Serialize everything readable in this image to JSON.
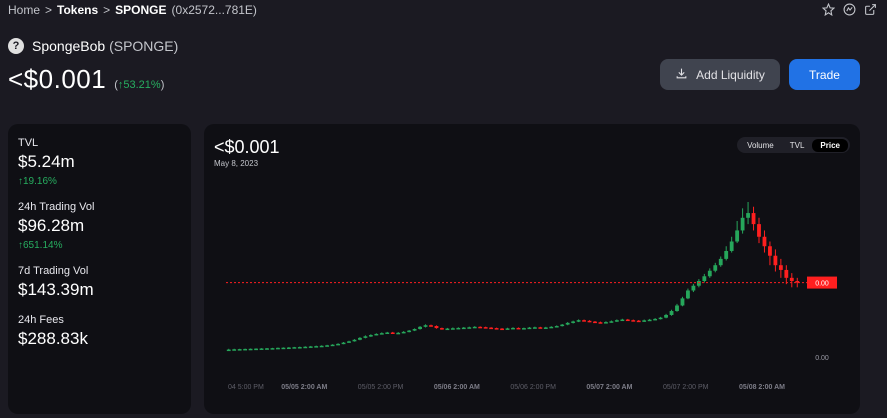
{
  "breadcrumb": {
    "home": "Home",
    "sep1": ">",
    "tokens": "Tokens",
    "sep2": ">",
    "current": "SPONGE",
    "address": "(0x2572...781E)"
  },
  "icons": {
    "star": "star-icon",
    "explorer": "explorer-icon",
    "external": "external-link-icon"
  },
  "token": {
    "name": "SpongeBob",
    "symbol": "(SPONGE)",
    "logo_glyph": "?",
    "price": "<$0.001",
    "change_open": "(",
    "change_arrow": "↑",
    "change": "53.21%",
    "change_close": ")"
  },
  "actions": {
    "add_liquidity": "Add Liquidity",
    "trade": "Trade"
  },
  "stats": [
    {
      "label": "TVL",
      "value": "$5.24m",
      "change": "↑19.16%"
    },
    {
      "label": "24h Trading Vol",
      "value": "$96.28m",
      "change": "↑651.14%"
    },
    {
      "label": "7d Trading Vol",
      "value": "$143.39m",
      "change": ""
    },
    {
      "label": "24h Fees",
      "value": "$288.83k",
      "change": ""
    }
  ],
  "chart_header": {
    "price": "<$0.001",
    "date": "May 8, 2023"
  },
  "chart_tabs": [
    {
      "label": "Volume",
      "active": false
    },
    {
      "label": "TVL",
      "active": false
    },
    {
      "label": "Price",
      "active": true
    }
  ],
  "colors": {
    "up": "#26a65b",
    "down": "#ff1f1f",
    "accent": "#2172e5",
    "positive": "#27ae60"
  },
  "chart_data": {
    "type": "candlestick",
    "price_line_label": "0.00",
    "y_tick_labels": [
      "0.00"
    ],
    "x_tick_labels": [
      {
        "text": "04 5:00 PM",
        "bold": false
      },
      {
        "text": "05/05 2:00 AM",
        "bold": true
      },
      {
        "text": "05/05 2:00 PM",
        "bold": false
      },
      {
        "text": "05/06 2:00 AM",
        "bold": true
      },
      {
        "text": "05/06 2:00 PM",
        "bold": false
      },
      {
        "text": "05/07 2:00 AM",
        "bold": true
      },
      {
        "text": "05/07 2:00 PM",
        "bold": false
      },
      {
        "text": "05/08 2:00 AM",
        "bold": true
      }
    ],
    "ylim": [
      0,
      1
    ],
    "candles": [
      [
        0.063,
        0.066,
        0.071,
        0.061
      ],
      [
        0.066,
        0.068,
        0.071,
        0.064
      ],
      [
        0.068,
        0.069,
        0.071,
        0.066
      ],
      [
        0.069,
        0.07,
        0.072,
        0.067
      ],
      [
        0.07,
        0.071,
        0.073,
        0.068
      ],
      [
        0.071,
        0.072,
        0.074,
        0.069
      ],
      [
        0.072,
        0.073,
        0.075,
        0.07
      ],
      [
        0.073,
        0.074,
        0.076,
        0.071
      ],
      [
        0.074,
        0.075,
        0.077,
        0.072
      ],
      [
        0.075,
        0.077,
        0.079,
        0.073
      ],
      [
        0.077,
        0.078,
        0.08,
        0.075
      ],
      [
        0.078,
        0.079,
        0.082,
        0.076
      ],
      [
        0.079,
        0.081,
        0.083,
        0.077
      ],
      [
        0.081,
        0.082,
        0.085,
        0.079
      ],
      [
        0.082,
        0.084,
        0.087,
        0.08
      ],
      [
        0.084,
        0.086,
        0.089,
        0.082
      ],
      [
        0.086,
        0.088,
        0.091,
        0.084
      ],
      [
        0.088,
        0.09,
        0.093,
        0.086
      ],
      [
        0.09,
        0.093,
        0.096,
        0.088
      ],
      [
        0.093,
        0.097,
        0.1,
        0.091
      ],
      [
        0.097,
        0.102,
        0.106,
        0.095
      ],
      [
        0.102,
        0.11,
        0.114,
        0.1
      ],
      [
        0.11,
        0.118,
        0.122,
        0.108
      ],
      [
        0.118,
        0.128,
        0.132,
        0.116
      ],
      [
        0.128,
        0.14,
        0.145,
        0.125
      ],
      [
        0.14,
        0.15,
        0.156,
        0.137
      ],
      [
        0.15,
        0.158,
        0.163,
        0.146
      ],
      [
        0.158,
        0.165,
        0.169,
        0.155
      ],
      [
        0.165,
        0.17,
        0.175,
        0.162
      ],
      [
        0.17,
        0.174,
        0.178,
        0.167
      ],
      [
        0.174,
        0.168,
        0.178,
        0.165
      ],
      [
        0.168,
        0.172,
        0.177,
        0.165
      ],
      [
        0.172,
        0.178,
        0.183,
        0.169
      ],
      [
        0.178,
        0.186,
        0.19,
        0.175
      ],
      [
        0.186,
        0.196,
        0.2,
        0.183
      ],
      [
        0.196,
        0.21,
        0.215,
        0.192
      ],
      [
        0.21,
        0.22,
        0.226,
        0.206
      ],
      [
        0.22,
        0.215,
        0.224,
        0.211
      ],
      [
        0.215,
        0.202,
        0.219,
        0.198
      ],
      [
        0.202,
        0.196,
        0.205,
        0.192
      ],
      [
        0.196,
        0.199,
        0.203,
        0.192
      ],
      [
        0.199,
        0.201,
        0.206,
        0.195
      ],
      [
        0.201,
        0.203,
        0.207,
        0.198
      ],
      [
        0.203,
        0.205,
        0.209,
        0.2
      ],
      [
        0.205,
        0.207,
        0.211,
        0.202
      ],
      [
        0.207,
        0.21,
        0.214,
        0.204
      ],
      [
        0.21,
        0.208,
        0.213,
        0.205
      ],
      [
        0.208,
        0.205,
        0.211,
        0.202
      ],
      [
        0.205,
        0.202,
        0.208,
        0.199
      ],
      [
        0.202,
        0.199,
        0.205,
        0.196
      ],
      [
        0.199,
        0.197,
        0.202,
        0.194
      ],
      [
        0.197,
        0.2,
        0.204,
        0.194
      ],
      [
        0.2,
        0.203,
        0.207,
        0.197
      ],
      [
        0.203,
        0.2,
        0.206,
        0.197
      ],
      [
        0.2,
        0.202,
        0.205,
        0.197
      ],
      [
        0.202,
        0.205,
        0.209,
        0.199
      ],
      [
        0.205,
        0.207,
        0.211,
        0.202
      ],
      [
        0.207,
        0.204,
        0.21,
        0.201
      ],
      [
        0.204,
        0.206,
        0.21,
        0.201
      ],
      [
        0.206,
        0.21,
        0.214,
        0.203
      ],
      [
        0.21,
        0.215,
        0.219,
        0.207
      ],
      [
        0.215,
        0.224,
        0.228,
        0.212
      ],
      [
        0.224,
        0.235,
        0.24,
        0.22
      ],
      [
        0.235,
        0.244,
        0.249,
        0.231
      ],
      [
        0.244,
        0.252,
        0.257,
        0.24
      ],
      [
        0.252,
        0.248,
        0.256,
        0.244
      ],
      [
        0.248,
        0.243,
        0.252,
        0.239
      ],
      [
        0.243,
        0.239,
        0.247,
        0.235
      ],
      [
        0.239,
        0.236,
        0.243,
        0.232
      ],
      [
        0.236,
        0.24,
        0.245,
        0.232
      ],
      [
        0.24,
        0.245,
        0.25,
        0.236
      ],
      [
        0.245,
        0.252,
        0.257,
        0.241
      ],
      [
        0.252,
        0.256,
        0.261,
        0.248
      ],
      [
        0.256,
        0.252,
        0.26,
        0.248
      ],
      [
        0.252,
        0.249,
        0.256,
        0.245
      ],
      [
        0.249,
        0.246,
        0.253,
        0.242
      ],
      [
        0.246,
        0.251,
        0.256,
        0.242
      ],
      [
        0.251,
        0.255,
        0.26,
        0.247
      ],
      [
        0.255,
        0.26,
        0.265,
        0.251
      ],
      [
        0.26,
        0.268,
        0.273,
        0.256
      ],
      [
        0.268,
        0.285,
        0.292,
        0.264
      ],
      [
        0.285,
        0.31,
        0.318,
        0.28
      ],
      [
        0.31,
        0.345,
        0.355,
        0.305
      ],
      [
        0.345,
        0.39,
        0.4,
        0.34
      ],
      [
        0.39,
        0.44,
        0.452,
        0.385
      ],
      [
        0.44,
        0.47,
        0.482,
        0.43
      ],
      [
        0.47,
        0.5,
        0.512,
        0.46
      ],
      [
        0.5,
        0.53,
        0.545,
        0.49
      ],
      [
        0.53,
        0.565,
        0.58,
        0.52
      ],
      [
        0.565,
        0.6,
        0.615,
        0.555
      ],
      [
        0.6,
        0.64,
        0.655,
        0.59
      ],
      [
        0.64,
        0.69,
        0.72,
        0.63
      ],
      [
        0.69,
        0.75,
        0.78,
        0.68
      ],
      [
        0.75,
        0.82,
        0.88,
        0.74
      ],
      [
        0.82,
        0.9,
        0.96,
        0.8
      ],
      [
        0.9,
        0.93,
        1.0,
        0.86
      ],
      [
        0.93,
        0.86,
        0.97,
        0.82
      ],
      [
        0.86,
        0.78,
        0.9,
        0.74
      ],
      [
        0.78,
        0.72,
        0.82,
        0.68
      ],
      [
        0.72,
        0.66,
        0.75,
        0.6
      ],
      [
        0.66,
        0.6,
        0.7,
        0.56
      ],
      [
        0.6,
        0.57,
        0.64,
        0.52
      ],
      [
        0.57,
        0.52,
        0.6,
        0.48
      ],
      [
        0.52,
        0.5,
        0.55,
        0.46
      ],
      [
        0.5,
        0.49,
        0.52,
        0.46
      ]
    ]
  }
}
